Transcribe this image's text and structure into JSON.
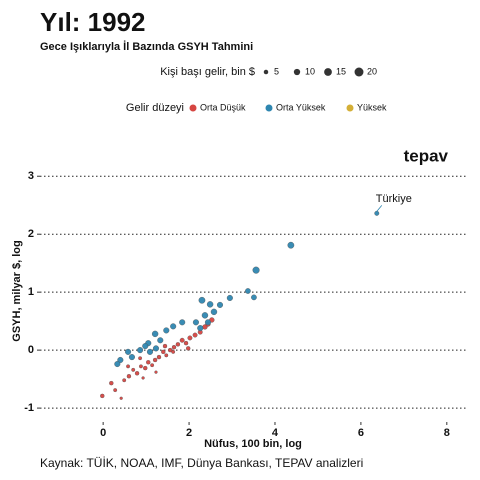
{
  "chart_data": {
    "type": "scatter",
    "title": "Yıl: 1992",
    "subtitle": "Gece Işıklarıyla İl Bazında GSYH Tahmini",
    "brand": "tepav",
    "x_label": "Nüfus, 100 bin, log",
    "y_label": "GSYH, milyar $, log",
    "source": "Kaynak: TÜİK, NOAA, IMF, Dünya Bankası, TEPAV analizleri",
    "size_legend": {
      "title": "Kişi başı gelir, bin $",
      "values": [
        5,
        10,
        15,
        20
      ]
    },
    "color_legend_title": "Gelir düzeyi",
    "xlim": [
      -1.47,
      8.47
    ],
    "ylim": [
      -1.24,
      3.28
    ],
    "xticks": [
      0,
      2,
      4,
      6,
      8
    ],
    "yticks": [
      -1,
      0,
      1,
      2,
      3
    ],
    "grid": true,
    "series": [
      {
        "name": "Orta Düşük",
        "color": "#d64541",
        "x": [
          -0.02,
          0.19,
          0.28,
          0.42,
          0.49,
          0.6,
          0.7,
          0.79,
          0.88,
          0.98,
          1.05,
          1.14,
          1.21,
          1.3,
          1.4,
          1.47,
          1.56,
          1.65,
          1.74,
          1.84,
          1.93,
          2.02,
          2.14,
          2.26,
          2.37,
          2.44,
          2.53,
          1.23,
          0.93,
          0.58,
          1.44,
          1.63,
          1.98,
          0.86
        ],
        "values": [
          -0.79,
          -0.57,
          -0.69,
          -0.83,
          -0.52,
          -0.45,
          -0.34,
          -0.4,
          -0.28,
          -0.31,
          -0.21,
          -0.26,
          -0.17,
          -0.12,
          -0.03,
          -0.09,
          0.0,
          0.05,
          0.1,
          0.17,
          0.12,
          0.21,
          0.26,
          0.31,
          0.4,
          0.45,
          0.52,
          -0.38,
          -0.48,
          -0.28,
          0.07,
          -0.03,
          0.03,
          -0.14
        ],
        "sizes": [
          4,
          4,
          3,
          2,
          3,
          4,
          3,
          4,
          3,
          4,
          4,
          3,
          4,
          4,
          4,
          3,
          4,
          4,
          4,
          5,
          4,
          5,
          5,
          5,
          6,
          6,
          6,
          2,
          2,
          3,
          4,
          3,
          4,
          3
        ]
      },
      {
        "name": "Orta Yüksek",
        "color": "#2e86b0",
        "x": [
          6.37,
          4.37,
          3.56,
          3.37,
          3.51,
          2.95,
          2.72,
          2.3,
          2.49,
          2.58,
          2.37,
          2.16,
          1.84,
          1.63,
          1.47,
          1.21,
          1.33,
          1.05,
          0.98,
          0.86,
          1.09,
          0.58,
          0.67,
          0.4,
          0.33,
          1.23,
          2.44,
          2.26
        ],
        "values": [
          2.36,
          1.81,
          1.38,
          1.02,
          0.91,
          0.9,
          0.78,
          0.86,
          0.79,
          0.66,
          0.6,
          0.48,
          0.48,
          0.41,
          0.34,
          0.28,
          0.17,
          0.12,
          0.07,
          0.0,
          -0.03,
          -0.03,
          -0.12,
          -0.17,
          -0.24,
          0.03,
          0.48,
          0.38
        ],
        "sizes": [
          5,
          10,
          11,
          7,
          7,
          8,
          8,
          10,
          9,
          9,
          9,
          8,
          8,
          8,
          8,
          9,
          8,
          8,
          8,
          8,
          8,
          8,
          8,
          8,
          8,
          8,
          8,
          8
        ]
      },
      {
        "name": "Yüksek",
        "color": "#d4af37",
        "x": [],
        "values": [],
        "sizes": []
      }
    ],
    "annotations": [
      {
        "text": "Türkiye",
        "x": 6.37,
        "y": 2.36
      }
    ]
  }
}
